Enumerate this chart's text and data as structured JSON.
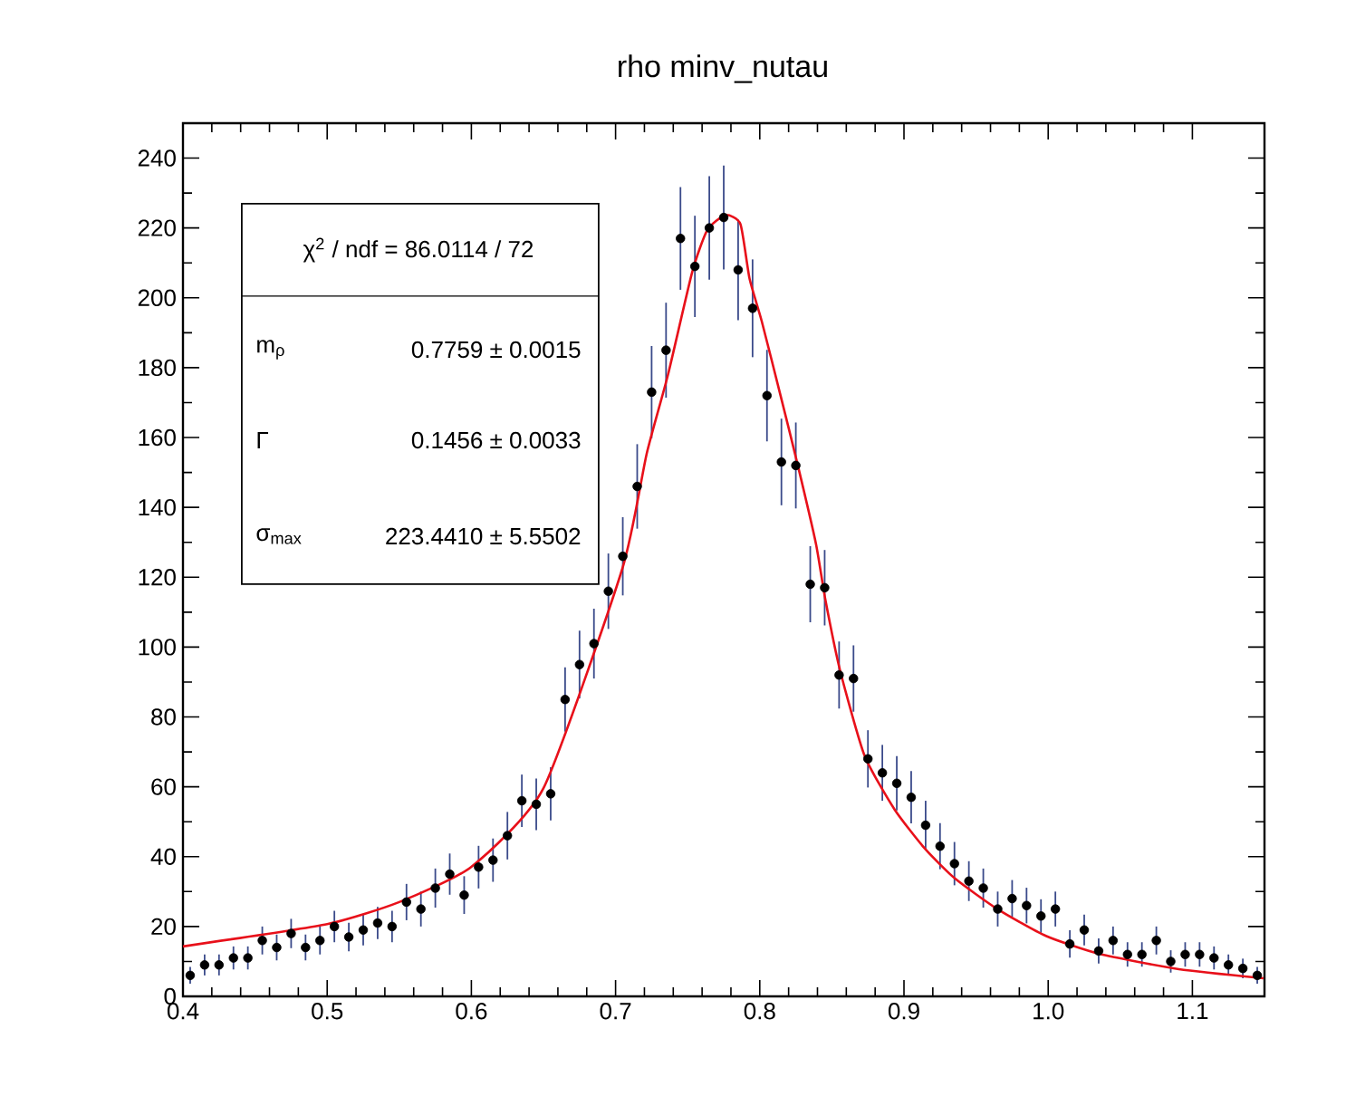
{
  "chart_data": {
    "type": "scatter",
    "title": "rho minv_nutau",
    "xlim": [
      0.4,
      1.15
    ],
    "xticks": [
      0.4,
      0.5,
      0.6,
      0.7,
      0.8,
      0.9,
      {
        "value": 1.0,
        "label": "1.0"
      },
      1.1
    ],
    "ylim": [
      0,
      250
    ],
    "yticks": [
      0,
      20,
      40,
      60,
      80,
      100,
      120,
      140,
      160,
      180,
      200,
      220,
      240
    ],
    "grid": false,
    "annotations": [
      "χ$^{2}$ / ndf =  86.0114 / 72",
      "m$_{ρ}$",
      "0.7759 ± 0.0015",
      "Γ",
      "0.1456 ± 0.0033",
      "σ$_{max}$",
      "223.4410 ± 5.5502"
    ],
    "series": [
      {
        "type": "scatter",
        "color": "#000000",
        "x": [
          0.405,
          0.415,
          0.425,
          0.435,
          0.445,
          0.455,
          0.465,
          0.475,
          0.485,
          0.495,
          0.505,
          0.515,
          0.525,
          0.535,
          0.545,
          0.555,
          0.565,
          0.575,
          0.585,
          0.595,
          0.605,
          0.615,
          0.625,
          0.635,
          0.645,
          0.655,
          0.665,
          0.675,
          0.685,
          0.695,
          0.705,
          0.715,
          0.725,
          0.735,
          0.745,
          0.755,
          0.765,
          0.775,
          0.785,
          0.795,
          0.805,
          0.815,
          0.825,
          0.835,
          0.845,
          0.855,
          0.865,
          0.875,
          0.885,
          0.895,
          0.905,
          0.915,
          0.925,
          0.935,
          0.945,
          0.955,
          0.965,
          0.975,
          0.985,
          0.995,
          1.005,
          1.015,
          1.025,
          1.035,
          1.045,
          1.055,
          1.065,
          1.075,
          1.085,
          1.095,
          1.105,
          1.115,
          1.125,
          1.135,
          1.145
        ],
        "values": [
          6,
          9,
          9,
          11,
          11,
          16,
          14,
          18,
          14,
          16,
          20,
          17,
          19,
          21,
          20,
          27,
          25,
          31,
          35,
          29,
          37,
          39,
          46,
          56,
          55,
          58,
          85,
          95,
          101,
          116,
          126,
          146,
          173,
          185,
          217,
          209,
          220,
          223,
          208,
          197,
          172,
          153,
          152,
          118,
          117,
          92,
          91,
          68,
          64,
          61,
          57,
          49,
          43,
          38,
          33,
          31,
          25,
          28,
          26,
          23,
          25,
          15,
          19,
          13,
          16,
          12,
          12,
          16,
          10,
          12,
          12,
          11,
          9,
          8,
          6
        ],
        "errors": [
          2.4,
          3,
          3,
          3.3,
          3.3,
          4,
          3.7,
          4.2,
          3.7,
          4,
          4.5,
          4.1,
          4.4,
          4.6,
          4.5,
          5.2,
          5,
          5.6,
          5.9,
          5.4,
          6.1,
          6.2,
          6.8,
          7.5,
          7.4,
          7.6,
          9.2,
          9.7,
          10,
          10.8,
          11.2,
          12.1,
          13.2,
          13.6,
          14.7,
          14.5,
          14.8,
          14.9,
          14.4,
          14,
          13.1,
          12.4,
          12.3,
          10.9,
          10.8,
          9.6,
          9.5,
          8.2,
          8,
          7.8,
          7.5,
          7,
          6.6,
          6.2,
          5.7,
          5.6,
          5,
          5.3,
          5.1,
          4.8,
          5,
          3.9,
          4.4,
          3.6,
          4,
          3.5,
          3.5,
          4,
          3.2,
          3.5,
          3.5,
          3.3,
          3,
          2.8,
          2.4
        ]
      },
      {
        "type": "line",
        "marker": "none",
        "color": "#e8101a",
        "x": [
          0.4,
          0.5,
          0.55,
          0.6,
          0.65,
          0.7048,
          0.7216,
          0.7363,
          0.7531,
          0.7635,
          0.7761,
          0.7866,
          0.7929,
          0.8013,
          0.814,
          0.8264,
          0.839,
          0.8453,
          0.8557,
          0.8726,
          0.8935,
          0.9145,
          0.9355,
          0.9648,
          0.9984,
          1.036,
          1.0906,
          1.1493
        ],
        "values": [
          14.3,
          20.7,
          27,
          37.1,
          59.6,
          122.6,
          155.4,
          177.9,
          207.3,
          219.3,
          223.7,
          221.1,
          205.5,
          193.4,
          172.7,
          152,
          129.5,
          114,
          93.3,
          69,
          53.5,
          42.3,
          33.7,
          25,
          17.3,
          12.1,
          7.8,
          5.2
        ]
      }
    ]
  }
}
